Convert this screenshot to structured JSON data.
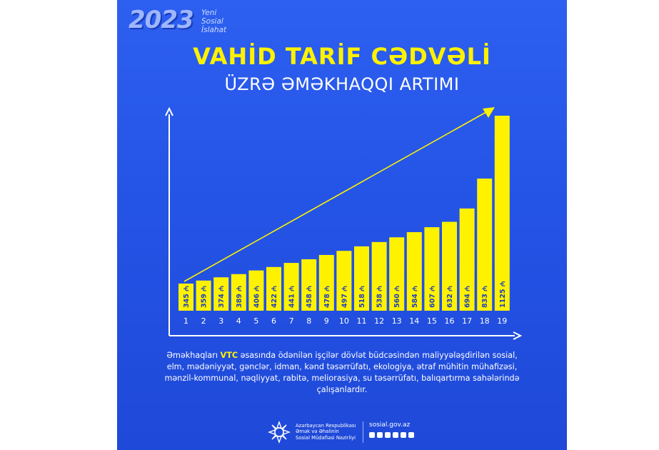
{
  "header": {
    "year": "2023",
    "tagline": [
      "Yeni",
      "Sosial",
      "İslahat"
    ],
    "title_line1": "VAHİD TARİF CƏDVƏLİ",
    "title_line2": "ÜZRƏ ƏMƏKHAQQI ARTIMI"
  },
  "chart_data": {
    "type": "bar",
    "categories": [
      "1",
      "2",
      "3",
      "4",
      "5",
      "6",
      "7",
      "8",
      "9",
      "10",
      "11",
      "12",
      "13",
      "14",
      "15",
      "16",
      "17",
      "18",
      "19"
    ],
    "values": [
      345,
      359,
      374,
      389,
      406,
      422,
      441,
      458,
      478,
      497,
      518,
      538,
      560,
      584,
      607,
      632,
      694,
      833,
      1125
    ],
    "value_labels": [
      "345 ₼",
      "359 ₼",
      "374 ₼",
      "389 ₼",
      "406 ₼",
      "422 ₼",
      "441 ₼",
      "458 ₼",
      "478 ₼",
      "497 ₼",
      "518 ₼",
      "538 ₼",
      "560 ₼",
      "584 ₼",
      "607 ₼",
      "632 ₼",
      "694 ₼",
      "833 ₼",
      "1125 ₼"
    ],
    "bar_color": "#fff200",
    "axis_color": "#ffffff",
    "trend_arrow": true
  },
  "description": {
    "prefix": "Əməkhaqları ",
    "highlight": "VTC",
    "suffix": " əsasında ödənilən işçilər dövlət büdcəsindən maliyyələşdirilən sosial, elm, mədəniyyət, gənclər, idman, kənd təsərrüfatı, ekologiya, ətraf mühitin mühafizəsi, mənzil-kommunal, nəqliyyat, rabitə, meliorasiya, su təsərrüfatı, balıqartırma sahələrində çalışanlardır."
  },
  "footer": {
    "ministry": [
      "Azərbaycan Respublikası",
      "Əmək və Əhalinin",
      "Sosial Müdafiəsi Nazirliyi"
    ],
    "site": "sosial.gov.az",
    "social_icons": [
      "facebook-icon",
      "instagram-icon",
      "telegram-icon",
      "twitter-icon",
      "youtube-icon",
      "linkedin-icon"
    ]
  },
  "colors": {
    "background": "#2454e6",
    "accent": "#fff200"
  }
}
